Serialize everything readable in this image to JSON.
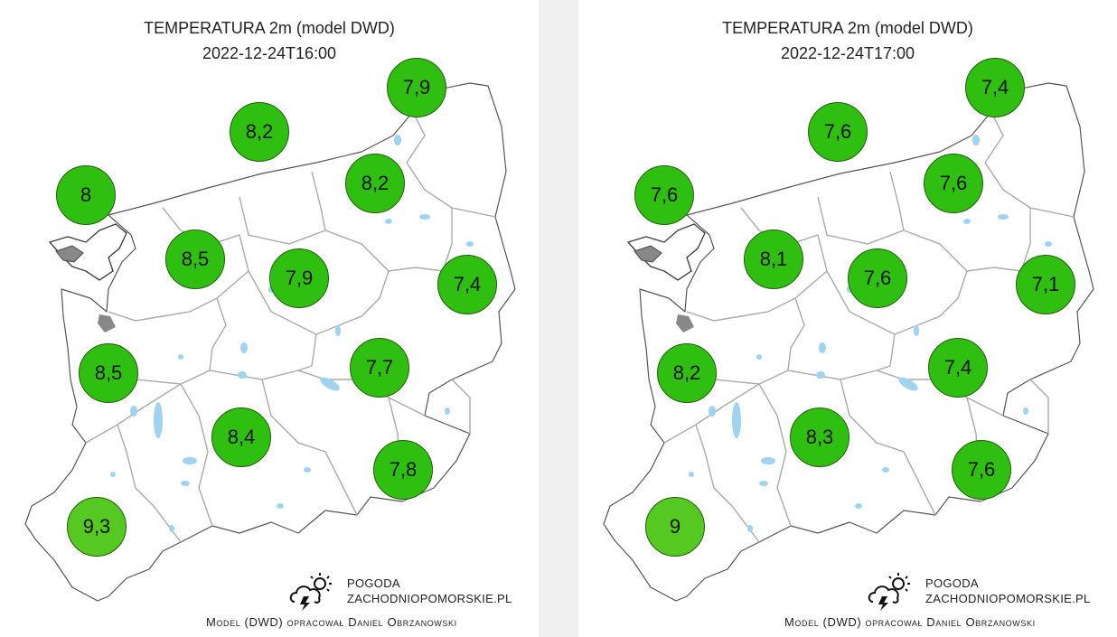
{
  "brand": {
    "line1": "POGODA",
    "line2": "ZACHODNIOPOMORSKIE.PL",
    "credit": "Model (DWD) opracował Daniel Obrzanowski",
    "icon": "storm-cloud-sun-icon"
  },
  "colors": {
    "station_green": "#2ebf10",
    "station_green_light": "#55c821",
    "land": "#ffffff",
    "land_outline": "#555555",
    "borders": "#aaaaaa",
    "lakes": "#9fd3ef"
  },
  "panels": [
    {
      "title": "TEMPERATURA 2m (model DWD)",
      "timestamp": "2022-12-24T16:00",
      "stations": [
        {
          "value": "7,9",
          "temp": 7.9
        },
        {
          "value": "8,2",
          "temp": 8.2
        },
        {
          "value": "8",
          "temp": 8.0
        },
        {
          "value": "8,2",
          "temp": 8.2
        },
        {
          "value": "8,5",
          "temp": 8.5
        },
        {
          "value": "7,9",
          "temp": 7.9
        },
        {
          "value": "7,4",
          "temp": 7.4
        },
        {
          "value": "8,5",
          "temp": 8.5
        },
        {
          "value": "7,7",
          "temp": 7.7
        },
        {
          "value": "8,4",
          "temp": 8.4
        },
        {
          "value": "7,8",
          "temp": 7.8
        },
        {
          "value": "9,3",
          "temp": 9.3
        }
      ]
    },
    {
      "title": "TEMPERATURA 2m (model DWD)",
      "timestamp": "2022-12-24T17:00",
      "stations": [
        {
          "value": "7,4",
          "temp": 7.4
        },
        {
          "value": "7,6",
          "temp": 7.6
        },
        {
          "value": "7,6",
          "temp": 7.6
        },
        {
          "value": "7,6",
          "temp": 7.6
        },
        {
          "value": "8,1",
          "temp": 8.1
        },
        {
          "value": "7,6",
          "temp": 7.6
        },
        {
          "value": "7,1",
          "temp": 7.1
        },
        {
          "value": "8,2",
          "temp": 8.2
        },
        {
          "value": "7,4",
          "temp": 7.4
        },
        {
          "value": "8,3",
          "temp": 8.3
        },
        {
          "value": "7,6",
          "temp": 7.6
        },
        {
          "value": "9",
          "temp": 9.0
        }
      ]
    }
  ]
}
